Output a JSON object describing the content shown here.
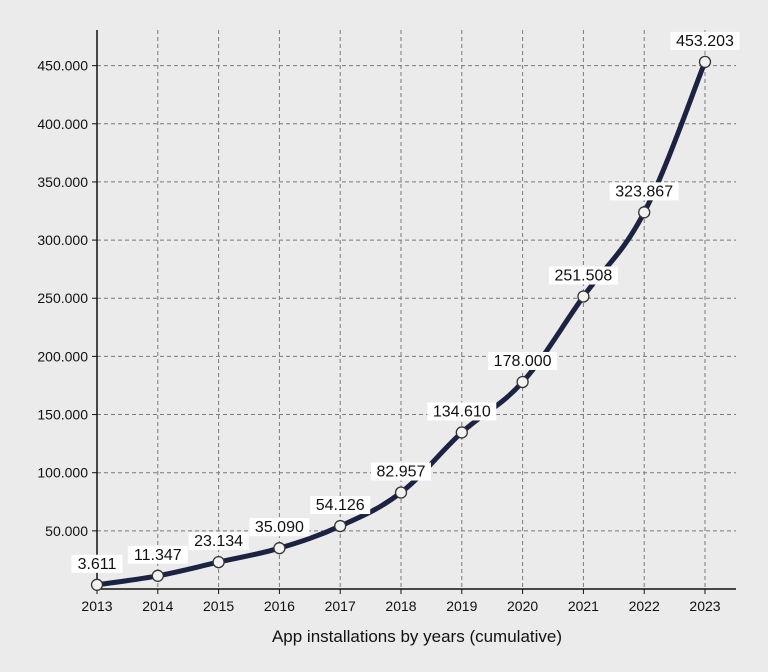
{
  "chart_data": {
    "type": "line",
    "title": "",
    "xlabel": "App installations by years (cumulative)",
    "ylabel": "",
    "categories": [
      "2013",
      "2014",
      "2015",
      "2016",
      "2017",
      "2018",
      "2019",
      "2020",
      "2021",
      "2022",
      "2023"
    ],
    "series": [
      {
        "values": [
          3611,
          11347,
          23134,
          35090,
          54126,
          82957,
          134610,
          178000,
          251508,
          323867,
          453203
        ],
        "labels": [
          "3.611",
          "11.347",
          "23.134",
          "35.090",
          "54.126",
          "82.957",
          "134.610",
          "178.000",
          "251.508",
          "323.867",
          "453.203"
        ]
      }
    ],
    "yticks": [
      50000,
      100000,
      150000,
      200000,
      250000,
      300000,
      350000,
      400000,
      450000
    ],
    "ytick_labels": [
      "50.000",
      "100.000",
      "150.000",
      "200.000",
      "250.000",
      "300.000",
      "350.000",
      "400.000",
      "450.000"
    ],
    "ylim": [
      0,
      460000
    ],
    "grid": true,
    "legend": "none",
    "colors": {
      "background": "#ebebeb",
      "line": "#1b2242",
      "marker_fill": "#f2f2f2",
      "grid": "#7a7a7a",
      "axis": "#111111"
    }
  }
}
